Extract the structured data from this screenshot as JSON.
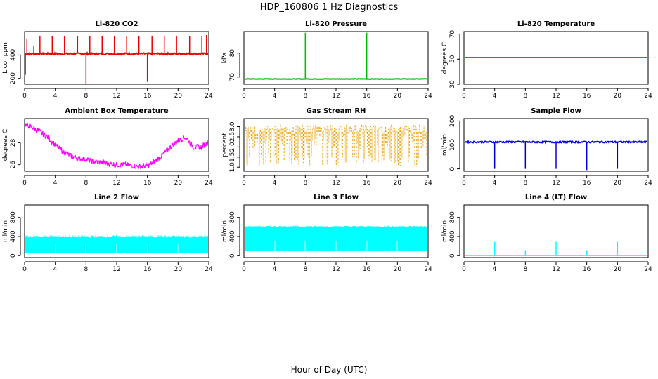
{
  "figure": {
    "title": "HDP_160806  1 Hz Diagnostics",
    "xlabel": "Hour of Day (UTC)"
  },
  "chart_data": [
    {
      "type": "line",
      "title": "Li-820 CO2",
      "ylabel": "Licor ppm",
      "color": "#ee0000",
      "xlim": [
        0,
        24
      ],
      "ylim": [
        150,
        600
      ],
      "xticks": [
        0,
        4,
        8,
        12,
        16,
        20,
        24
      ],
      "yticks": [
        200,
        400
      ],
      "baseline": 410,
      "noise": 8,
      "spikes": [
        {
          "x": 0.1,
          "y": 230
        },
        {
          "x": 0.3,
          "y": 540
        },
        {
          "x": 1.2,
          "y": 480
        },
        {
          "x": 2.0,
          "y": 560
        },
        {
          "x": 3.6,
          "y": 560
        },
        {
          "x": 5.2,
          "y": 560
        },
        {
          "x": 6.9,
          "y": 560
        },
        {
          "x": 8.0,
          "y": 60
        },
        {
          "x": 8.5,
          "y": 560
        },
        {
          "x": 10.1,
          "y": 560
        },
        {
          "x": 11.7,
          "y": 560
        },
        {
          "x": 13.3,
          "y": 560
        },
        {
          "x": 14.9,
          "y": 560
        },
        {
          "x": 16.0,
          "y": 170
        },
        {
          "x": 16.6,
          "y": 560
        },
        {
          "x": 18.2,
          "y": 560
        },
        {
          "x": 19.8,
          "y": 560
        },
        {
          "x": 21.5,
          "y": 560
        },
        {
          "x": 23.1,
          "y": 560
        },
        {
          "x": 23.7,
          "y": 570
        }
      ]
    },
    {
      "type": "line",
      "title": "Li-820 Pressure",
      "ylabel": "kPa",
      "color": "#00bb00",
      "xlim": [
        0,
        24
      ],
      "ylim": [
        67,
        89
      ],
      "xticks": [
        0,
        4,
        8,
        12,
        16,
        20,
        24
      ],
      "yticks": [
        70,
        80
      ],
      "baseline": 69.2,
      "noise": 0.1,
      "spikes": [
        {
          "x": 0.05,
          "y": 83
        },
        {
          "x": 8.0,
          "y": 88.5
        },
        {
          "x": 16.0,
          "y": 88.5
        },
        {
          "x": 24.0,
          "y": 88.5
        }
      ]
    },
    {
      "type": "line",
      "title": "Li-820 Temperature",
      "ylabel": "degrees C",
      "color": "#cc00cc",
      "xlim": [
        0,
        24
      ],
      "ylim": [
        30,
        72
      ],
      "xticks": [
        0,
        4,
        8,
        12,
        16,
        20,
        24
      ],
      "yticks": [
        30,
        50,
        70
      ],
      "baseline": 51.5,
      "noise": 0
    },
    {
      "type": "line",
      "title": "Ambient Box Temperature",
      "ylabel": "degrees C",
      "color": "#ff00ff",
      "xlim": [
        0,
        24
      ],
      "ylim": [
        25.4,
        30.2
      ],
      "xticks": [
        0,
        4,
        8,
        12,
        16,
        20,
        24
      ],
      "yticks": [
        26,
        28
      ],
      "x": [
        0,
        1,
        2,
        3,
        4,
        5,
        6,
        7,
        8,
        9,
        10,
        11,
        12,
        13,
        14,
        15,
        16,
        17,
        18,
        19,
        20,
        21,
        22,
        23,
        24
      ],
      "y": [
        29.7,
        29.4,
        29.0,
        28.5,
        27.8,
        27.2,
        26.8,
        26.6,
        26.5,
        26.3,
        26.2,
        26.1,
        26.0,
        26.0,
        25.9,
        25.8,
        25.9,
        26.3,
        26.9,
        27.6,
        28.2,
        28.5,
        27.6,
        27.6,
        28.1
      ],
      "noise": 0.25
    },
    {
      "type": "scatter",
      "title": "Gas Stream RH",
      "ylabel": "percent",
      "color": "#e69f00",
      "xlim": [
        0,
        24
      ],
      "ylim": [
        0.8,
        3.4
      ],
      "xticks": [
        0,
        4,
        8,
        12,
        16,
        20,
        24
      ],
      "yticks": [
        1.0,
        1.5,
        2.0,
        2.5,
        3.0
      ],
      "baseline": 2.9,
      "noise": 0.2,
      "low": 1.0
    },
    {
      "type": "line",
      "title": "Sample Flow",
      "ylabel": "ml/min",
      "color": "#0000dd",
      "xlim": [
        0,
        24
      ],
      "ylim": [
        -10,
        210
      ],
      "xticks": [
        0,
        4,
        8,
        12,
        16,
        20,
        24
      ],
      "yticks": [
        0,
        100,
        200
      ],
      "baseline": 112,
      "noise": 3,
      "spikes": [
        {
          "x": 4.0,
          "y": 0
        },
        {
          "x": 8.0,
          "y": 0
        },
        {
          "x": 12.0,
          "y": 0
        },
        {
          "x": 16.0,
          "y": -5
        },
        {
          "x": 20.0,
          "y": 0
        },
        {
          "x": 24.0,
          "y": 0
        }
      ]
    },
    {
      "type": "area",
      "title": "Line 2 Flow",
      "ylabel": "ml/min",
      "color": "#00ffff",
      "xlim": [
        0,
        24
      ],
      "ylim": [
        -40,
        1060
      ],
      "xticks": [
        0,
        4,
        8,
        12,
        16,
        20,
        24
      ],
      "yticks": [
        0,
        400,
        800
      ],
      "top": 400,
      "bottom": 50,
      "noise": 25
    },
    {
      "type": "area",
      "title": "Line 3 Flow",
      "ylabel": "ml/min",
      "color": "#00ffff",
      "xlim": [
        0,
        24
      ],
      "ylim": [
        -40,
        1060
      ],
      "xticks": [
        0,
        4,
        8,
        12,
        16,
        20,
        24
      ],
      "yticks": [
        0,
        400,
        800
      ],
      "top": 610,
      "bottom": 100,
      "noise": 15
    },
    {
      "type": "line",
      "title": "Line 4 (LT) Flow",
      "ylabel": "ml/min",
      "color": "#00ffff",
      "xlim": [
        0,
        24
      ],
      "ylim": [
        -40,
        1060
      ],
      "xticks": [
        0,
        4,
        8,
        12,
        16,
        20,
        24
      ],
      "yticks": [
        0,
        400,
        800
      ],
      "baseline": 0,
      "noise": 0,
      "spikes": [
        {
          "x": 4.0,
          "y": 290
        },
        {
          "x": 8.0,
          "y": 110
        },
        {
          "x": 12.0,
          "y": 290
        },
        {
          "x": 16.0,
          "y": 110
        },
        {
          "x": 20.0,
          "y": 290
        },
        {
          "x": 24.0,
          "y": 110
        }
      ]
    }
  ]
}
